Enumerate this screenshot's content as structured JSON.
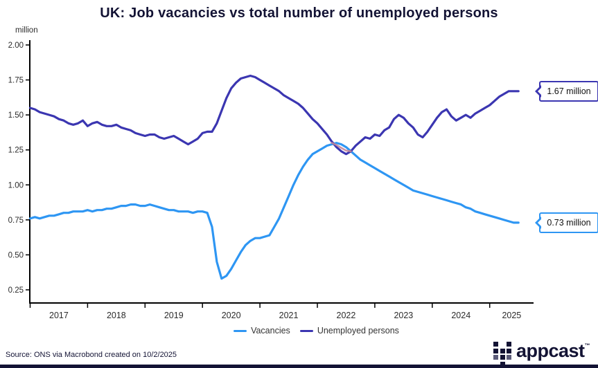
{
  "title": "UK: Job vacancies vs total number of unemployed persons",
  "y_axis_unit": "million",
  "chart_data": {
    "type": "line",
    "title": "UK: Job vacancies vs total number of unemployed persons",
    "ylabel": "million",
    "ylim": [
      0.25,
      2.0
    ],
    "y_ticks": [
      "2.00",
      "1.75",
      "1.50",
      "1.25",
      "1.00",
      "0.75",
      "0.50",
      "0.25"
    ],
    "y_tick_values": [
      2.0,
      1.75,
      1.5,
      1.25,
      1.0,
      0.75,
      0.5,
      0.25
    ],
    "x_labels": [
      "2017",
      "2018",
      "2019",
      "2020",
      "2021",
      "2022",
      "2023",
      "2024",
      "2025"
    ],
    "x_start_year": 2017,
    "x_step": "monthly",
    "grid": false,
    "legend_position": "bottom",
    "overlap_color": "#c4879b",
    "series": [
      {
        "name": "Vacancies",
        "color": "#2E96F3",
        "values": [
          0.76,
          0.77,
          0.76,
          0.77,
          0.78,
          0.78,
          0.79,
          0.8,
          0.8,
          0.81,
          0.81,
          0.81,
          0.82,
          0.81,
          0.82,
          0.82,
          0.83,
          0.83,
          0.84,
          0.85,
          0.85,
          0.86,
          0.86,
          0.85,
          0.85,
          0.86,
          0.85,
          0.84,
          0.83,
          0.82,
          0.82,
          0.81,
          0.81,
          0.81,
          0.8,
          0.81,
          0.81,
          0.8,
          0.7,
          0.45,
          0.33,
          0.35,
          0.4,
          0.46,
          0.52,
          0.57,
          0.6,
          0.62,
          0.62,
          0.63,
          0.64,
          0.7,
          0.76,
          0.84,
          0.92,
          1.0,
          1.07,
          1.13,
          1.18,
          1.22,
          1.24,
          1.26,
          1.28,
          1.29,
          1.3,
          1.29,
          1.27,
          1.24,
          1.21,
          1.18,
          1.16,
          1.14,
          1.12,
          1.1,
          1.08,
          1.06,
          1.04,
          1.02,
          1.0,
          0.98,
          0.96,
          0.95,
          0.94,
          0.93,
          0.92,
          0.91,
          0.9,
          0.89,
          0.88,
          0.87,
          0.86,
          0.84,
          0.83,
          0.81,
          0.8,
          0.79,
          0.78,
          0.77,
          0.76,
          0.75,
          0.74,
          0.73,
          0.73
        ]
      },
      {
        "name": "Unemployed persons",
        "color": "#3B36B1",
        "values": [
          1.55,
          1.54,
          1.52,
          1.51,
          1.5,
          1.49,
          1.47,
          1.46,
          1.44,
          1.43,
          1.44,
          1.46,
          1.42,
          1.44,
          1.45,
          1.43,
          1.42,
          1.42,
          1.43,
          1.41,
          1.4,
          1.39,
          1.37,
          1.36,
          1.35,
          1.36,
          1.36,
          1.34,
          1.33,
          1.34,
          1.35,
          1.33,
          1.31,
          1.29,
          1.31,
          1.33,
          1.37,
          1.38,
          1.38,
          1.44,
          1.53,
          1.62,
          1.69,
          1.73,
          1.76,
          1.77,
          1.78,
          1.77,
          1.75,
          1.73,
          1.71,
          1.69,
          1.67,
          1.64,
          1.62,
          1.6,
          1.58,
          1.55,
          1.51,
          1.47,
          1.44,
          1.4,
          1.36,
          1.31,
          1.27,
          1.24,
          1.22,
          1.24,
          1.28,
          1.31,
          1.34,
          1.33,
          1.36,
          1.35,
          1.39,
          1.41,
          1.47,
          1.5,
          1.48,
          1.44,
          1.41,
          1.36,
          1.34,
          1.38,
          1.43,
          1.48,
          1.52,
          1.54,
          1.49,
          1.46,
          1.48,
          1.5,
          1.48,
          1.51,
          1.53,
          1.55,
          1.57,
          1.6,
          1.63,
          1.65,
          1.67,
          1.67,
          1.67
        ]
      }
    ]
  },
  "callouts": [
    {
      "label": "1.67 million",
      "value": 1.67,
      "series": "Unemployed persons",
      "color": "#3B36B1"
    },
    {
      "label": "0.73 million",
      "value": 0.73,
      "series": "Vacancies",
      "color": "#2E96F3"
    }
  ],
  "legend": {
    "items": [
      "Vacancies",
      "Unemployed persons"
    ]
  },
  "footer": {
    "source": "Source: ONS via Macrobond created on 10/2/2025",
    "brand": "appcast",
    "brand_tm": "™"
  }
}
